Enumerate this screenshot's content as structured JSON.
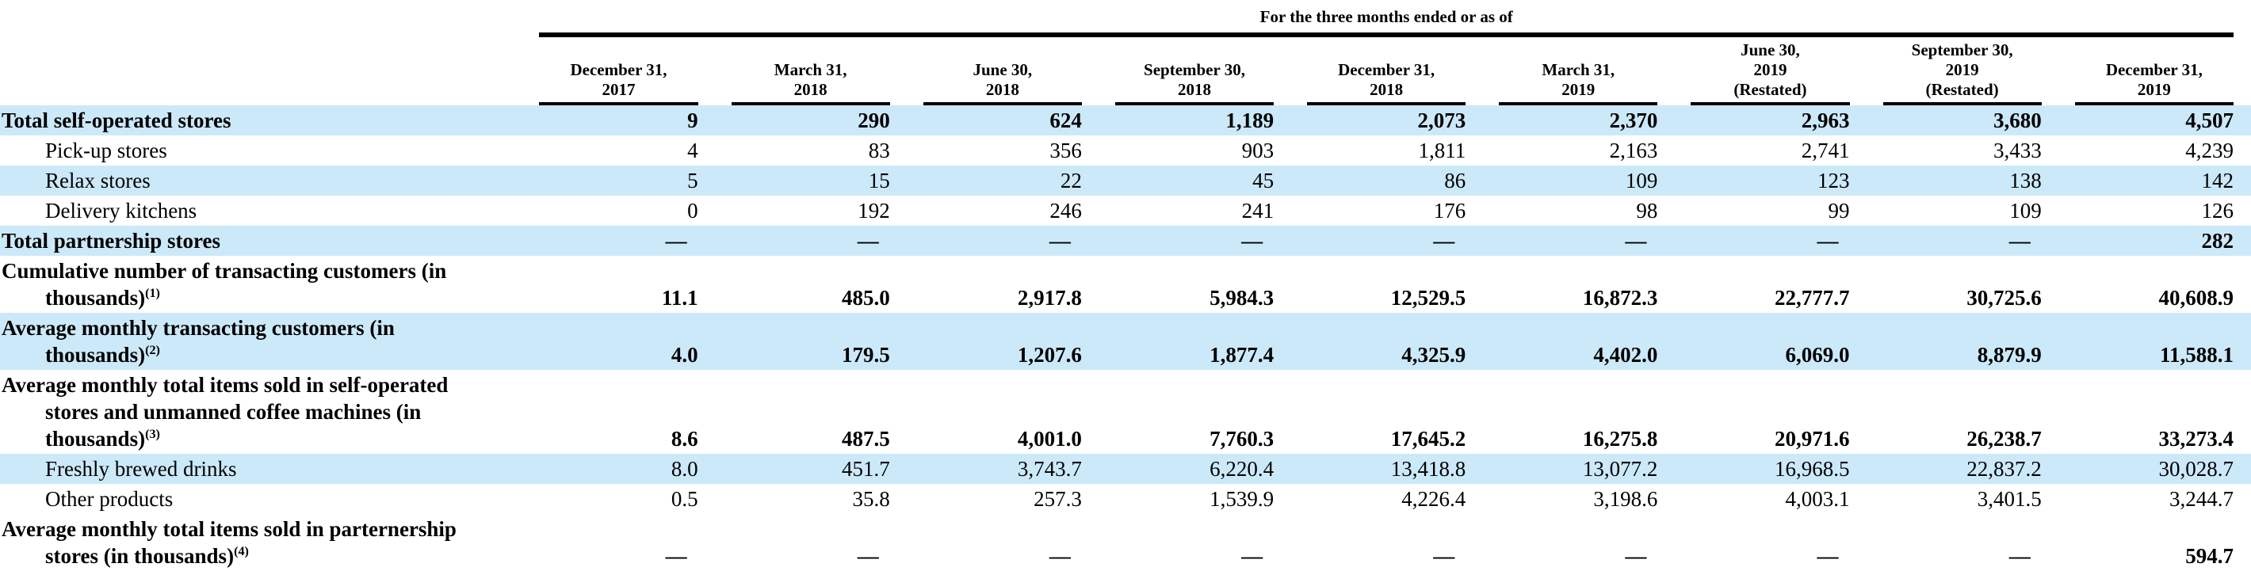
{
  "table": {
    "title": "For the three months ended or as of",
    "stripe_color": "#cce9f9",
    "rule_color": "#000000",
    "columns": [
      {
        "lines": [
          "December 31,",
          "2017"
        ]
      },
      {
        "lines": [
          "March 31,",
          "2018"
        ]
      },
      {
        "lines": [
          "June 30,",
          "2018"
        ]
      },
      {
        "lines": [
          "September 30,",
          "2018"
        ]
      },
      {
        "lines": [
          "December 31,",
          "2018"
        ]
      },
      {
        "lines": [
          "March 31,",
          "2019"
        ]
      },
      {
        "lines": [
          "June 30,",
          "2019",
          "(Restated)"
        ]
      },
      {
        "lines": [
          "September 30,",
          "2019",
          "(Restated)"
        ]
      },
      {
        "lines": [
          "December 31,",
          "2019"
        ]
      }
    ],
    "rows": [
      {
        "lines": [
          {
            "t": "Total self-operated stores",
            "indent": 0
          }
        ],
        "bold": true,
        "bg": "blue",
        "values": [
          "9",
          "290",
          "624",
          "1,189",
          "2,073",
          "2,370",
          "2,963",
          "3,680",
          "4,507"
        ]
      },
      {
        "lines": [
          {
            "t": "Pick-up stores",
            "indent": 1
          }
        ],
        "bold": false,
        "bg": "white",
        "values": [
          "4",
          "83",
          "356",
          "903",
          "1,811",
          "2,163",
          "2,741",
          "3,433",
          "4,239"
        ]
      },
      {
        "lines": [
          {
            "t": "Relax stores",
            "indent": 1
          }
        ],
        "bold": false,
        "bg": "blue",
        "values": [
          "5",
          "15",
          "22",
          "45",
          "86",
          "109",
          "123",
          "138",
          "142"
        ]
      },
      {
        "lines": [
          {
            "t": "Delivery kitchens",
            "indent": 1
          }
        ],
        "bold": false,
        "bg": "white",
        "values": [
          "0",
          "192",
          "246",
          "241",
          "176",
          "98",
          "99",
          "109",
          "126"
        ]
      },
      {
        "lines": [
          {
            "t": "Total partnership stores",
            "indent": 0
          }
        ],
        "bold": true,
        "bg": "blue",
        "values": [
          "—",
          "—",
          "—",
          "—",
          "—",
          "—",
          "—",
          "—",
          "282"
        ]
      },
      {
        "lines": [
          {
            "t": "Cumulative number of transacting customers (in",
            "indent": 0
          },
          {
            "t": "thousands)",
            "sup": "(1)",
            "indent": 1
          }
        ],
        "bold": true,
        "bg": "white",
        "values": [
          "11.1",
          "485.0",
          "2,917.8",
          "5,984.3",
          "12,529.5",
          "16,872.3",
          "22,777.7",
          "30,725.6",
          "40,608.9"
        ]
      },
      {
        "lines": [
          {
            "t": "Average monthly transacting customers (in",
            "indent": 0
          },
          {
            "t": "thousands)",
            "sup": "(2)",
            "indent": 1
          }
        ],
        "bold": true,
        "bg": "blue",
        "values": [
          "4.0",
          "179.5",
          "1,207.6",
          "1,877.4",
          "4,325.9",
          "4,402.0",
          "6,069.0",
          "8,879.9",
          "11,588.1"
        ]
      },
      {
        "lines": [
          {
            "t": "Average monthly total items sold in self-operated",
            "indent": 0
          },
          {
            "t": "stores and unmanned coffee machines (in",
            "indent": 1
          },
          {
            "t": "thousands)",
            "sup": "(3)",
            "indent": 1
          }
        ],
        "bold": true,
        "bg": "white",
        "values": [
          "8.6",
          "487.5",
          "4,001.0",
          "7,760.3",
          "17,645.2",
          "16,275.8",
          "20,971.6",
          "26,238.7",
          "33,273.4"
        ]
      },
      {
        "lines": [
          {
            "t": "Freshly brewed drinks",
            "indent": 1
          }
        ],
        "bold": false,
        "bg": "blue",
        "values": [
          "8.0",
          "451.7",
          "3,743.7",
          "6,220.4",
          "13,418.8",
          "13,077.2",
          "16,968.5",
          "22,837.2",
          "30,028.7"
        ]
      },
      {
        "lines": [
          {
            "t": "Other products",
            "indent": 1
          }
        ],
        "bold": false,
        "bg": "white",
        "values": [
          "0.5",
          "35.8",
          "257.3",
          "1,539.9",
          "4,226.4",
          "3,198.6",
          "4,003.1",
          "3,401.5",
          "3,244.7"
        ]
      },
      {
        "lines": [
          {
            "t": "Average monthly total items sold in parternership",
            "indent": 0
          },
          {
            "t": "stores (in thousands)",
            "sup": "(4)",
            "indent": 1
          }
        ],
        "bold": true,
        "bg": "white",
        "values": [
          "—",
          "—",
          "—",
          "—",
          "—",
          "—",
          "—",
          "—",
          "594.7"
        ]
      }
    ]
  }
}
